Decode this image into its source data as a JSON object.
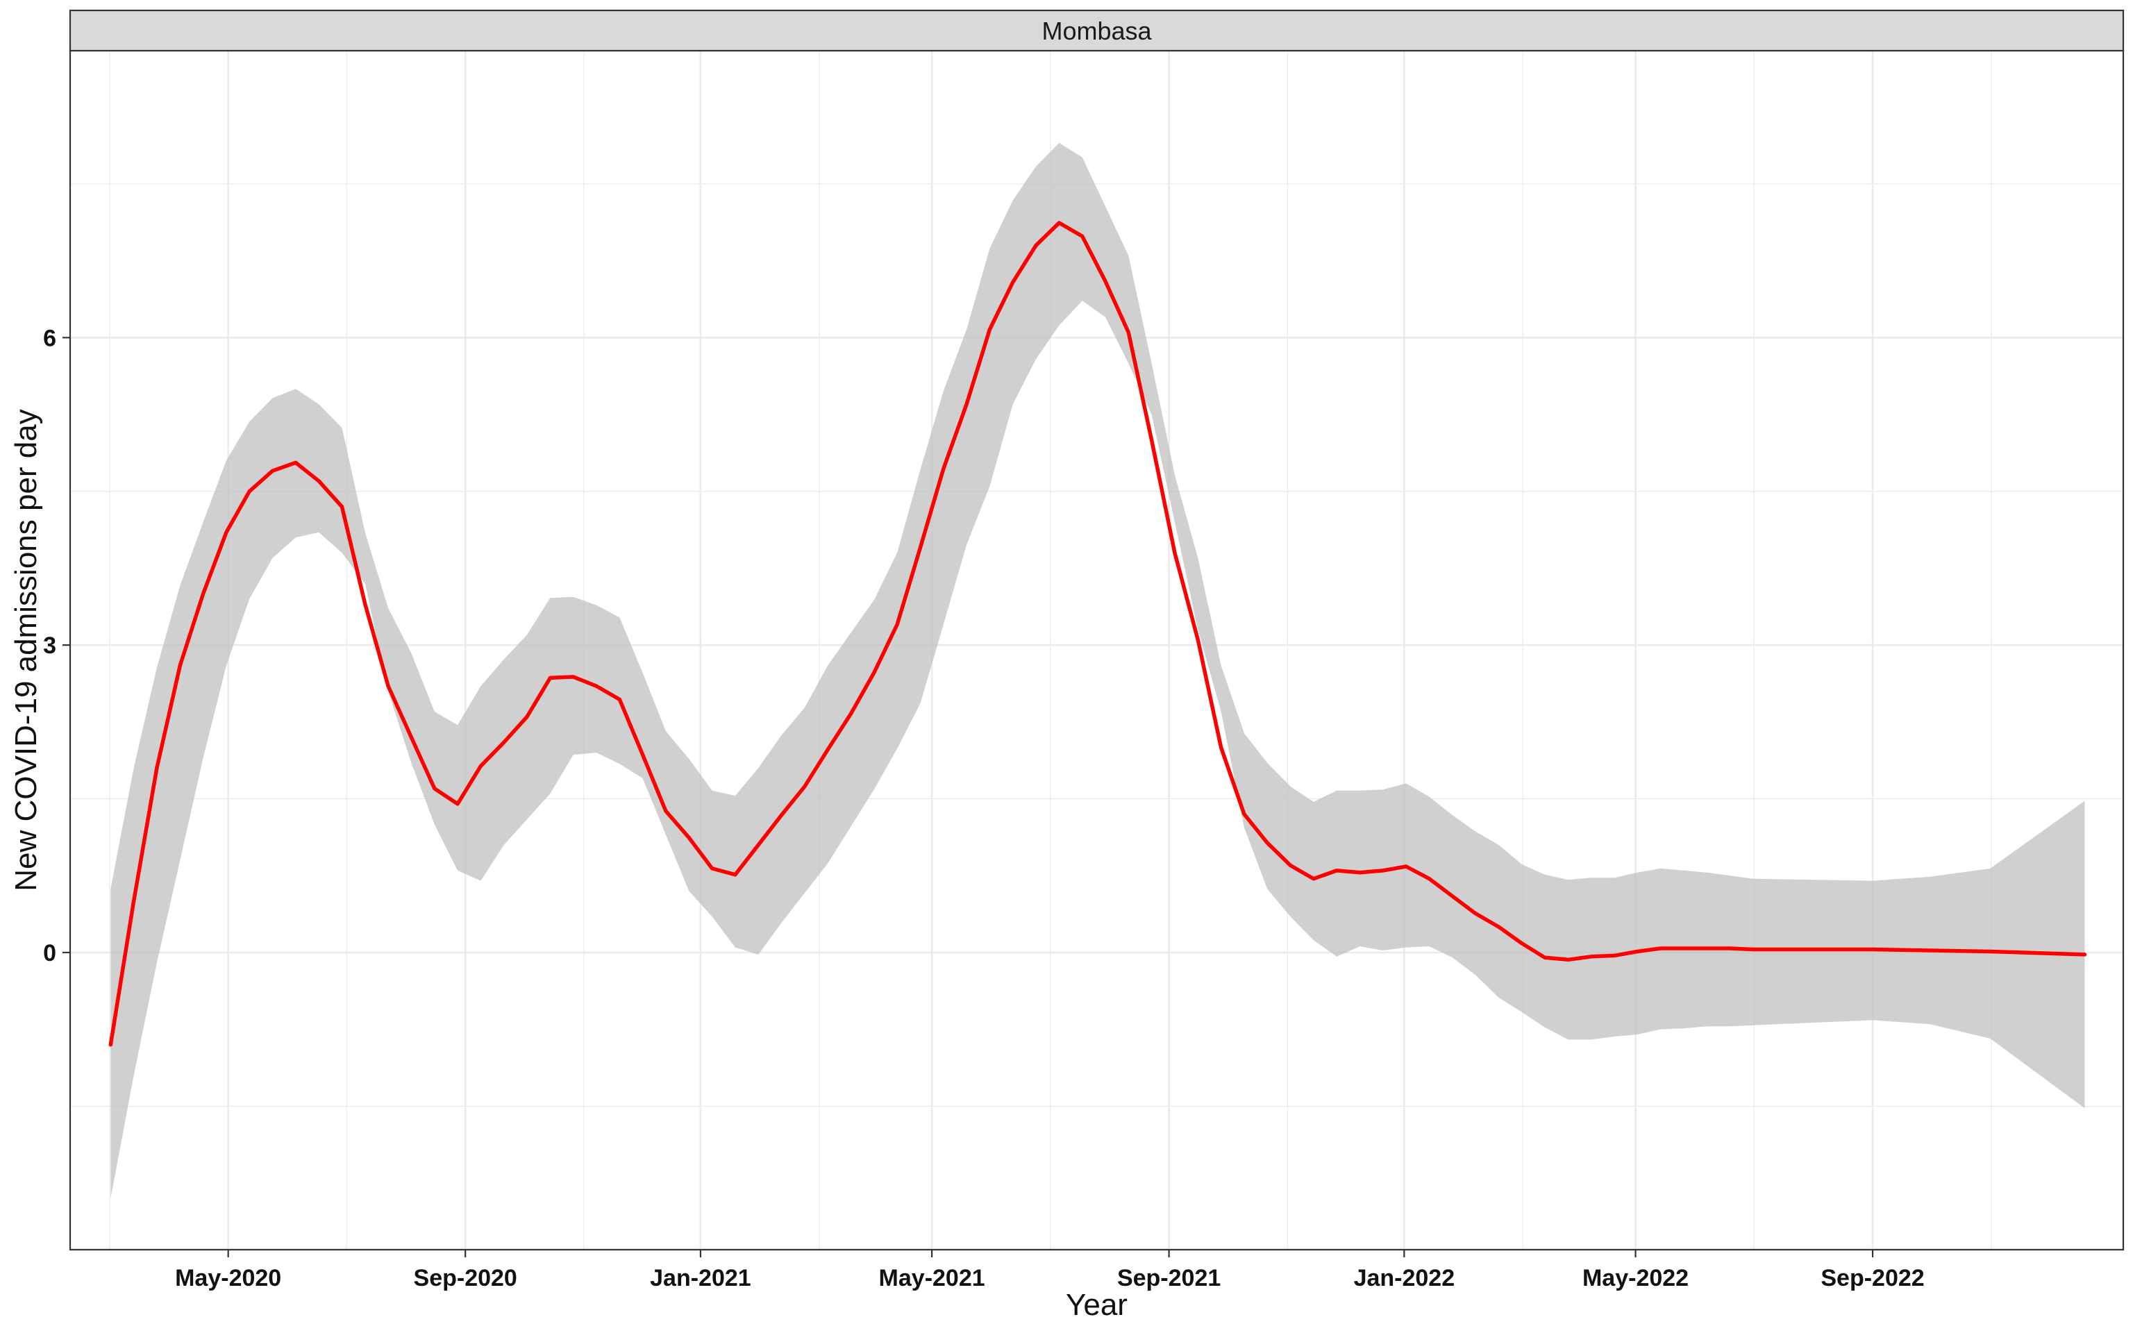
{
  "chart_data": {
    "type": "line",
    "facet": "Mombasa",
    "xlabel": "Year",
    "ylabel": "New COVID-19 admissions per day",
    "x_ticks": [
      "May-2020",
      "Sep-2020",
      "Jan-2021",
      "May-2021",
      "Sep-2021",
      "Jan-2022",
      "May-2022",
      "Sep-2022"
    ],
    "x_tick_dates": [
      "2020-05-01",
      "2020-09-01",
      "2021-01-01",
      "2021-05-01",
      "2021-09-01",
      "2022-01-01",
      "2022-05-01",
      "2022-09-01"
    ],
    "x_range": [
      "2020-02-09",
      "2023-01-09"
    ],
    "y_ticks": [
      0,
      3,
      6
    ],
    "y_tick_labels": [
      "0",
      "3",
      "6"
    ],
    "ylim": [
      -2.9,
      8.8
    ],
    "grid": true,
    "legend": "none",
    "colors": {
      "line": "#ff0000",
      "band": "#bebebe",
      "strip": "#d9d9d9",
      "grid": "#ebebeb"
    },
    "series": [
      {
        "x": [
          "2020-03-01",
          "2020-03-13",
          "2020-03-25",
          "2020-04-06",
          "2020-04-18",
          "2020-04-30",
          "2020-05-12",
          "2020-05-24",
          "2020-06-05",
          "2020-06-17",
          "2020-06-29",
          "2020-07-11",
          "2020-07-23",
          "2020-08-04",
          "2020-08-16",
          "2020-08-28",
          "2020-09-09",
          "2020-09-21",
          "2020-10-03",
          "2020-10-15",
          "2020-10-27",
          "2020-11-08",
          "2020-11-20",
          "2020-12-02",
          "2020-12-14",
          "2020-12-26",
          "2021-01-07",
          "2021-01-19",
          "2021-01-31",
          "2021-02-12",
          "2021-02-24",
          "2021-03-08",
          "2021-03-20",
          "2021-04-01",
          "2021-04-13",
          "2021-04-25",
          "2021-05-07",
          "2021-05-19",
          "2021-05-31",
          "2021-06-12",
          "2021-06-24",
          "2021-07-06",
          "2021-07-18",
          "2021-07-30",
          "2021-08-11",
          "2021-08-23",
          "2021-09-04",
          "2021-09-16",
          "2021-09-28",
          "2021-10-10",
          "2021-10-22",
          "2021-11-03",
          "2021-11-15",
          "2021-11-27",
          "2021-12-09",
          "2021-12-21",
          "2022-01-02",
          "2022-01-14",
          "2022-01-26",
          "2022-02-07",
          "2022-02-19",
          "2022-03-03",
          "2022-03-15",
          "2022-03-27",
          "2022-04-08",
          "2022-04-20",
          "2022-05-02",
          "2022-05-14",
          "2022-05-26",
          "2022-06-07",
          "2022-06-19",
          "2022-07-01",
          "2022-09-01",
          "2022-10-01",
          "2022-11-01",
          "2022-12-20"
        ],
        "y": [
          -0.9,
          0.5,
          1.8,
          2.8,
          3.5,
          4.1,
          4.5,
          4.7,
          4.78,
          4.6,
          4.35,
          3.4,
          2.6,
          2.1,
          1.6,
          1.45,
          1.82,
          2.05,
          2.3,
          2.68,
          2.69,
          2.6,
          2.47,
          1.93,
          1.38,
          1.12,
          0.82,
          0.76,
          1.05,
          1.34,
          1.62,
          1.98,
          2.33,
          2.73,
          3.2,
          3.95,
          4.72,
          5.35,
          6.08,
          6.54,
          6.9,
          7.12,
          6.99,
          6.55,
          6.05,
          5.0,
          3.9,
          3.05,
          2.0,
          1.35,
          1.07,
          0.85,
          0.72,
          0.8,
          0.78,
          0.8,
          0.84,
          0.72,
          0.55,
          0.38,
          0.25,
          0.09,
          -0.05,
          -0.07,
          -0.04,
          -0.03,
          0.01,
          0.04,
          0.04,
          0.04,
          0.04,
          0.03,
          0.03,
          0.02,
          0.01,
          -0.02
        ],
        "lower": [
          -2.4,
          -1.2,
          -0.1,
          0.9,
          1.9,
          2.8,
          3.45,
          3.85,
          4.05,
          4.1,
          3.9,
          3.6,
          2.55,
          1.85,
          1.25,
          0.8,
          0.7,
          1.05,
          1.3,
          1.55,
          1.93,
          1.95,
          1.84,
          1.7,
          1.15,
          0.6,
          0.35,
          0.05,
          -0.02,
          0.29,
          0.58,
          0.87,
          1.23,
          1.59,
          1.99,
          2.43,
          3.2,
          3.98,
          4.55,
          5.35,
          5.79,
          6.12,
          6.36,
          6.2,
          5.75,
          5.25,
          4.2,
          3.15,
          2.35,
          1.22,
          0.62,
          0.35,
          0.12,
          -0.04,
          0.06,
          0.02,
          0.05,
          0.06,
          -0.05,
          -0.22,
          -0.44,
          -0.58,
          -0.73,
          -0.85,
          -0.85,
          -0.82,
          -0.8,
          -0.75,
          -0.74,
          -0.72,
          -0.72,
          -0.71,
          -0.66,
          -0.7,
          -0.84,
          -1.52
        ],
        "upper": [
          0.62,
          1.8,
          2.78,
          3.58,
          4.2,
          4.8,
          5.18,
          5.41,
          5.5,
          5.35,
          5.12,
          4.1,
          3.36,
          2.92,
          2.35,
          2.22,
          2.6,
          2.86,
          3.1,
          3.46,
          3.47,
          3.39,
          3.27,
          2.73,
          2.16,
          1.89,
          1.58,
          1.53,
          1.8,
          2.12,
          2.39,
          2.8,
          3.12,
          3.44,
          3.9,
          4.71,
          5.48,
          6.08,
          6.87,
          7.34,
          7.67,
          7.9,
          7.76,
          7.28,
          6.8,
          5.75,
          4.66,
          3.85,
          2.8,
          2.14,
          1.85,
          1.62,
          1.47,
          1.58,
          1.58,
          1.59,
          1.65,
          1.52,
          1.34,
          1.18,
          1.05,
          0.86,
          0.76,
          0.71,
          0.73,
          0.73,
          0.78,
          0.82,
          0.8,
          0.78,
          0.75,
          0.72,
          0.7,
          0.74,
          0.82,
          1.48
        ]
      }
    ]
  }
}
